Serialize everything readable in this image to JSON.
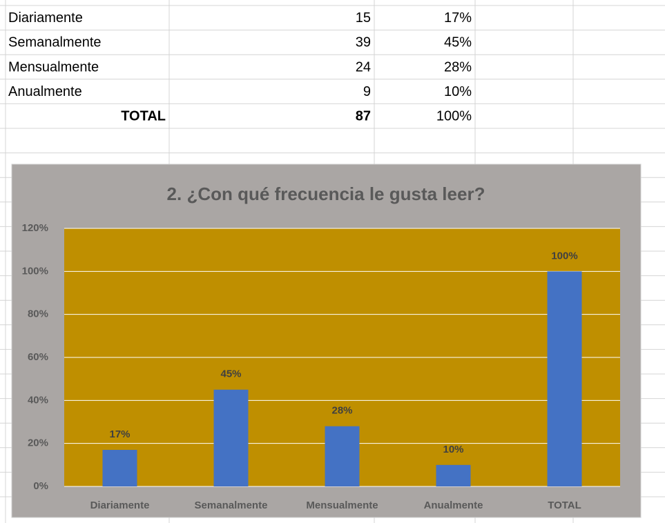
{
  "table": {
    "rows": [
      [
        "Diariamente",
        "15",
        "17%"
      ],
      [
        "Semanalmente",
        "39",
        "45%"
      ],
      [
        "Mensualmente",
        "24",
        "28%"
      ],
      [
        "Anualmente",
        "9",
        "10%"
      ],
      [
        "TOTAL",
        "87",
        "100%"
      ]
    ]
  },
  "chart_data": {
    "type": "bar",
    "title": "2. ¿Con qué frecuencia le gusta leer?",
    "categories": [
      "Diariamente",
      "Semanalmente",
      "Mensualmente",
      "Anualmente",
      "TOTAL"
    ],
    "values": [
      17,
      45,
      28,
      10,
      100
    ],
    "value_labels": [
      "17%",
      "45%",
      "28%",
      "10%",
      "100%"
    ],
    "color": "#4472c4",
    "ylim": [
      0,
      120
    ],
    "yticks": [
      {
        "value": 0,
        "label": "0%"
      },
      {
        "value": 20,
        "label": "20%"
      },
      {
        "value": 40,
        "label": "40%"
      },
      {
        "value": 60,
        "label": "60%"
      },
      {
        "value": 80,
        "label": "80%"
      },
      {
        "value": 100,
        "label": "100%"
      },
      {
        "value": 120,
        "label": "120%"
      }
    ],
    "grid": true
  }
}
